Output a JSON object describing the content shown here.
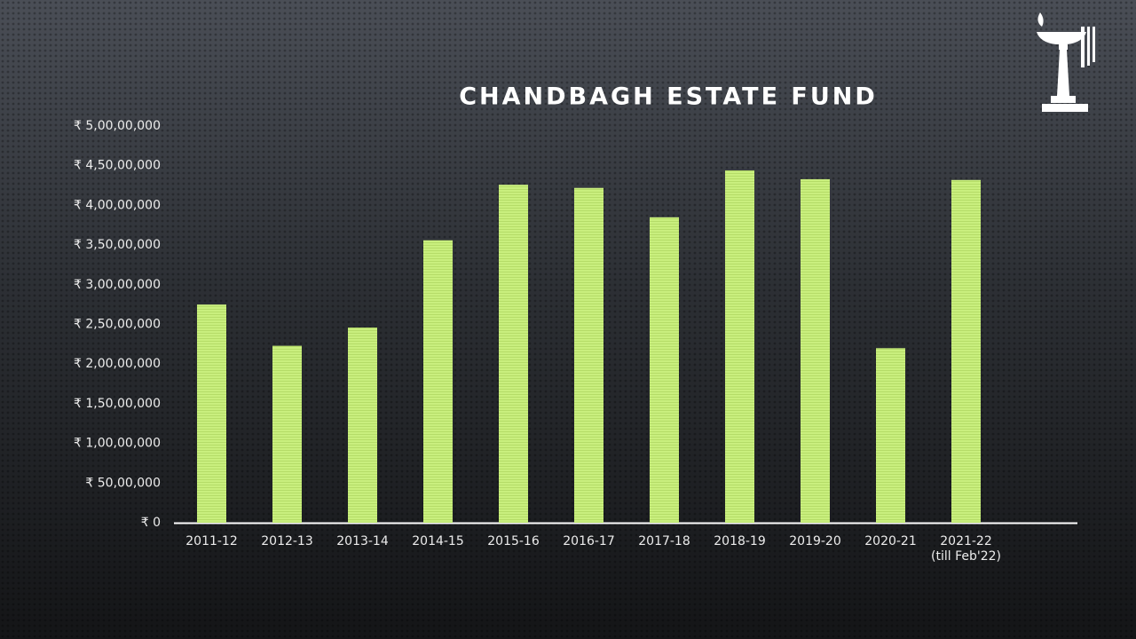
{
  "chart_data": {
    "type": "bar",
    "title": "CHANDBAGH ESTATE FUND",
    "categories": [
      "2011-12",
      "2012-13",
      "2013-14",
      "2014-15",
      "2015-16",
      "2016-17",
      "2017-18",
      "2018-19",
      "2019-20",
      "2020-21",
      "2021-22\n(till Feb'22)",
      null
    ],
    "values": [
      27500000,
      22300000,
      24600000,
      35600000,
      42600000,
      42200000,
      38500000,
      44400000,
      43300000,
      22000000,
      43200000,
      null
    ],
    "color": "#c9ef7e",
    "ylim": [
      0,
      50000000
    ],
    "yticks": [
      {
        "value": 0,
        "label": "₹ 0"
      },
      {
        "value": 5000000,
        "label": "₹ 50,00,000"
      },
      {
        "value": 10000000,
        "label": "₹ 1,00,00,000"
      },
      {
        "value": 15000000,
        "label": "₹ 1,50,00,000"
      },
      {
        "value": 20000000,
        "label": "₹ 2,00,00,000"
      },
      {
        "value": 25000000,
        "label": "₹ 2,50,00,000"
      },
      {
        "value": 30000000,
        "label": "₹ 3,00,00,000"
      },
      {
        "value": 35000000,
        "label": "₹ 3,50,00,000"
      },
      {
        "value": 40000000,
        "label": "₹ 4,00,00,000"
      },
      {
        "value": 45000000,
        "label": "₹ 4,50,00,000"
      },
      {
        "value": 50000000,
        "label": "₹ 5,00,00,000"
      }
    ],
    "grid": false
  }
}
